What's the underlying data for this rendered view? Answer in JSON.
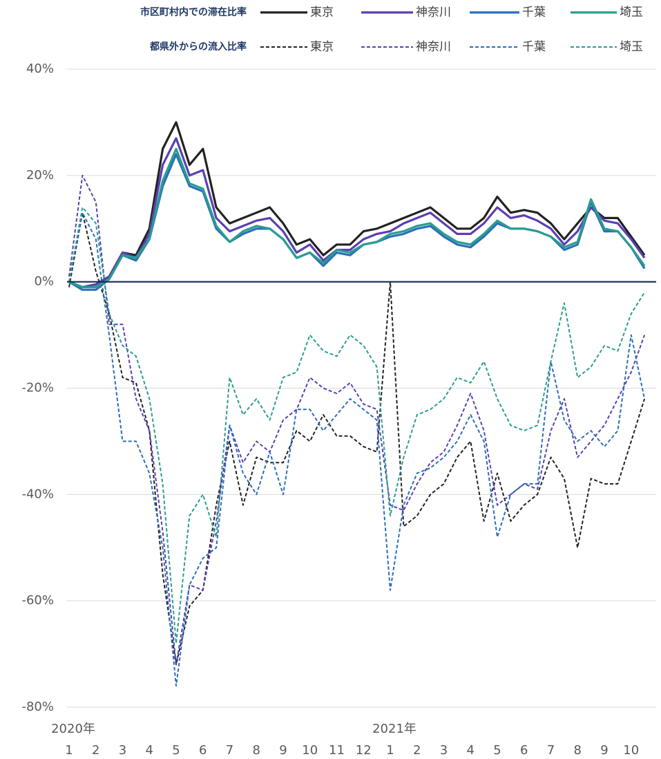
{
  "chart_data": {
    "type": "line",
    "legend_groups": [
      "市区町村内での滞在比率",
      "都県外からの流入比率"
    ],
    "x": [
      1,
      1.5,
      2,
      2.5,
      3,
      3.5,
      4,
      4.5,
      5,
      5.5,
      6,
      6.5,
      7,
      7.5,
      8,
      8.5,
      9,
      9.5,
      10,
      10.5,
      11,
      11.5,
      12,
      12.5,
      13,
      13.5,
      14,
      14.5,
      15,
      15.5,
      16,
      16.5,
      17,
      17.5,
      18,
      18.5,
      19,
      19.5,
      20,
      20.5,
      21,
      21.5,
      22,
      22.5
    ],
    "series": [
      {
        "name": "東京",
        "color": "#222222",
        "dash": false,
        "values": [
          0,
          -1,
          -0.5,
          1,
          5.5,
          5,
          10,
          25,
          30,
          22,
          25,
          14,
          11,
          12,
          13,
          14,
          11,
          7,
          8,
          5,
          7,
          7,
          9.5,
          10,
          11,
          12,
          13,
          14,
          12,
          10,
          10,
          12,
          16,
          13,
          13.5,
          13,
          11,
          8,
          11,
          14,
          12,
          12,
          8.5,
          5
        ]
      },
      {
        "name": "神奈川",
        "color": "#5b3fb0",
        "dash": false,
        "values": [
          0,
          -1,
          -0.5,
          1,
          5.5,
          4.5,
          9,
          22,
          27,
          20,
          21,
          12,
          9.5,
          10.5,
          11.5,
          12,
          9.5,
          5.5,
          7,
          4,
          6,
          6,
          8,
          9,
          9.5,
          11,
          12,
          13,
          11,
          9,
          9,
          11,
          14,
          12,
          12.5,
          11.5,
          10,
          7,
          9.5,
          14,
          11.5,
          11,
          8,
          4.5
        ]
      },
      {
        "name": "千葉",
        "color": "#2a6ebb",
        "dash": false,
        "values": [
          0,
          -1.5,
          -1.5,
          0.5,
          5,
          4,
          8,
          18,
          24,
          18,
          17,
          10,
          7.5,
          9,
          10,
          10,
          8,
          4.5,
          5.5,
          3,
          5.5,
          5,
          7,
          7.5,
          8.5,
          9,
          10,
          10.5,
          8.5,
          7,
          6.5,
          8.5,
          11,
          10,
          10,
          9.5,
          8.5,
          6,
          7,
          15,
          9.5,
          9.5,
          6.5,
          2.5
        ]
      },
      {
        "name": "埼玉",
        "color": "#2a9d8f",
        "dash": false,
        "values": [
          0,
          -1,
          -1,
          0.5,
          5,
          4.5,
          8,
          19,
          25,
          18.5,
          17.5,
          10.5,
          7.5,
          9.5,
          10.5,
          10,
          8,
          4.5,
          5.5,
          3.5,
          6,
          5.5,
          7,
          7.5,
          9,
          9.5,
          10.5,
          11,
          9,
          7.5,
          7,
          9,
          11.5,
          10,
          10,
          9.5,
          8.5,
          6.5,
          7.5,
          15.5,
          10,
          9.5,
          6.5,
          3
        ]
      },
      {
        "name": "東京",
        "color": "#222222",
        "dash": true,
        "values": [
          -1,
          13,
          2,
          -6,
          -18,
          -19,
          -28,
          -55,
          -72,
          -61,
          -58,
          -42,
          -30,
          -42,
          -33,
          -34,
          -34,
          -28,
          -30,
          -25,
          -29,
          -29,
          -31,
          -32,
          0,
          -46,
          -44,
          -40,
          -38,
          -33,
          -30,
          -45,
          -36,
          -45,
          -42,
          -40,
          -33,
          -37,
          -50,
          -37,
          -38,
          -38,
          -30,
          -22
        ]
      },
      {
        "name": "神奈川",
        "color": "#5b3fb0",
        "dash": true,
        "values": [
          1,
          20,
          15,
          -8,
          -8,
          -22,
          -28,
          -47,
          -72,
          -57,
          -58,
          -45,
          -27,
          -34,
          -30,
          -32,
          -26,
          -24,
          -18,
          -20,
          -21,
          -19,
          -23,
          -24,
          -42,
          -43,
          -38,
          -34,
          -32,
          -27,
          -21,
          -28,
          -42,
          -40,
          -38,
          -39,
          -28,
          -22,
          -33,
          -30,
          -27,
          -22,
          -17,
          -10
        ]
      },
      {
        "name": "千葉",
        "color": "#2a6ebb",
        "dash": true,
        "values": [
          0,
          13,
          8,
          -10,
          -30,
          -30,
          -36,
          -50,
          -76,
          -57,
          -52,
          -50,
          -27,
          -36,
          -40,
          -32,
          -40,
          -24,
          -24,
          -28,
          -25,
          -22,
          -24,
          -26,
          -58,
          -42,
          -36,
          -35,
          -33,
          -30,
          -25,
          -30,
          -48,
          -40,
          -38,
          -38,
          -15,
          -26,
          -30,
          -28,
          -31,
          -28,
          -10,
          -22
        ]
      },
      {
        "name": "埼玉",
        "color": "#2a9d8f",
        "dash": true,
        "values": [
          0,
          14,
          11,
          -6,
          -12,
          -14,
          -22,
          -38,
          -68,
          -44,
          -40,
          -48,
          -18,
          -25,
          -22,
          -26,
          -18,
          -17,
          -10,
          -13,
          -14,
          -10,
          -12,
          -16,
          -44,
          -33,
          -25,
          -24,
          -22,
          -18,
          -19,
          -15,
          -22,
          -27,
          -28,
          -27,
          -15,
          -4,
          -18,
          -16,
          -12,
          -13,
          -6,
          -2
        ]
      }
    ],
    "xlim": [
      1,
      22.6
    ],
    "xticks": [
      1,
      2,
      3,
      4,
      5,
      6,
      7,
      8,
      9,
      10,
      11,
      12,
      {
        "value": 13,
        "label": "1"
      },
      {
        "value": 14,
        "label": "2"
      },
      {
        "value": 15,
        "label": "3"
      },
      {
        "value": 16,
        "label": "4"
      },
      {
        "value": 17,
        "label": "5"
      },
      {
        "value": 18,
        "label": "6"
      },
      {
        "value": 19,
        "label": "7"
      },
      {
        "value": 20,
        "label": "8"
      },
      {
        "value": 21,
        "label": "9"
      },
      {
        "value": 22,
        "label": "10"
      }
    ],
    "year_labels": [
      {
        "value": 1,
        "label": "2020年"
      },
      {
        "value": 13,
        "label": "2021年"
      }
    ],
    "ylim": [
      -80,
      40
    ],
    "yticks": [
      {
        "value": -80,
        "label": "-80%"
      },
      {
        "value": -60,
        "label": "-60%"
      },
      {
        "value": -40,
        "label": "-40%"
      },
      {
        "value": -20,
        "label": "-20%"
      },
      {
        "value": 0,
        "label": "0%"
      },
      {
        "value": 20,
        "label": "20%"
      },
      {
        "value": 40,
        "label": "40%"
      }
    ],
    "grid": true,
    "reference_line": {
      "value": 0,
      "color": "#14285a"
    }
  }
}
